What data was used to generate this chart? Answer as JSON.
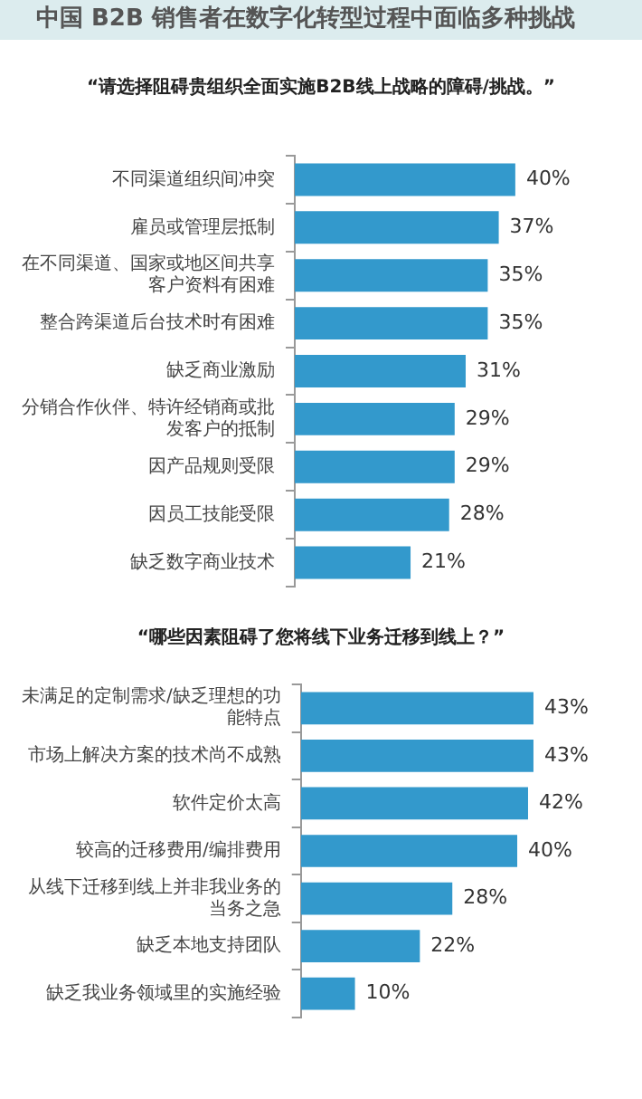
{
  "chart_data": [
    {
      "type": "bar",
      "orientation": "horizontal",
      "title": "中国 B2B 销售者在数字化转型过程中面临多种挑战",
      "subtitle": "“请选择阻碍贵组织全面实施B2B线上战略的障碍/挑战。”",
      "categories": [
        "不同渠道组织间冲突",
        "雇员或管理层抵制",
        "在不同渠道、国家或地区间共享客户资料有困难",
        "整合跨渠道后台技术时有困难",
        "缺乏商业激励",
        "分销合作伙伴、特许经销商或批发客户的抵制",
        "因产品规则受限",
        "因员工技能受限",
        "缺乏数字商业技术"
      ],
      "values": [
        40,
        37,
        35,
        35,
        31,
        29,
        29,
        28,
        21
      ],
      "color": "#3399cc",
      "value_labels": [
        "40%",
        "37%",
        "35%",
        "35%",
        "31%",
        "29%",
        "29%",
        "28%",
        "21%"
      ]
    },
    {
      "type": "bar",
      "orientation": "horizontal",
      "title": "“哪些因素阻碍了您将线下业务迁移到线上？”",
      "categories": [
        "未满足的定制需求/缺乏理想的功能特点",
        "市场上解决方案的技术尚不成熟",
        "软件定价太高",
        "较高的迁移费用/编排费用",
        "从线下迁移到线上并非我业务的当务之急",
        "缺乏本地支持团队",
        "缺乏我业务领域里的实施经验"
      ],
      "values": [
        43,
        43,
        42,
        40,
        28,
        22,
        10
      ],
      "color": "#3399cc",
      "value_labels": [
        "43%",
        "43%",
        "42%",
        "40%",
        "28%",
        "22%",
        "10%"
      ]
    }
  ]
}
